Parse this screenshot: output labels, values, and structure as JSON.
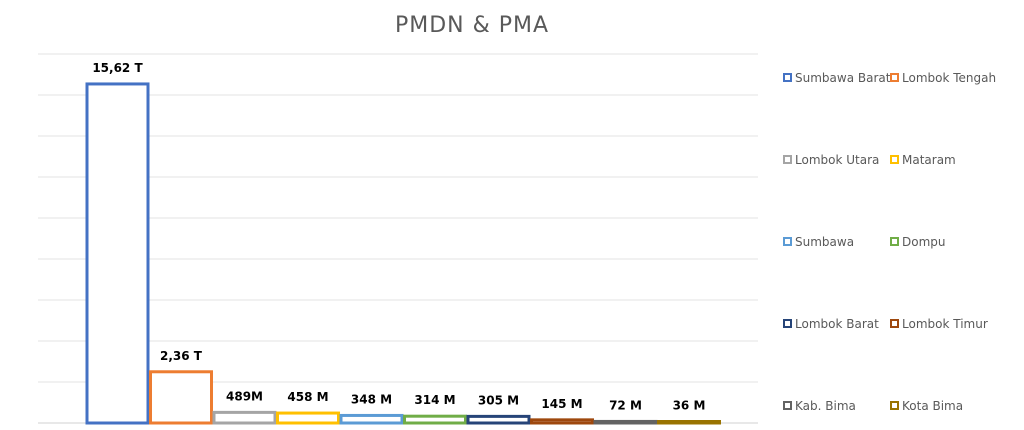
{
  "chart_data": {
    "type": "bar",
    "title": "PMDN & PMA",
    "xlabel": "",
    "ylabel": "",
    "ylim": [
      0,
      17
    ],
    "grid": true,
    "legend_position": "right",
    "bar_style": "outline",
    "series": [
      {
        "name": "Sumbawa Barat",
        "value": 15.62,
        "label": "15,62 T",
        "color": "#4472C4"
      },
      {
        "name": "Lombok Tengah",
        "value": 2.36,
        "label": "2,36 T",
        "color": "#ED7D31"
      },
      {
        "name": "Lombok Utara",
        "value": 0.489,
        "label": "489M",
        "color": "#A5A5A5"
      },
      {
        "name": "Mataram",
        "value": 0.458,
        "label": "458 M",
        "color": "#FFC000"
      },
      {
        "name": "Sumbawa",
        "value": 0.348,
        "label": "348 M",
        "color": "#5B9BD5"
      },
      {
        "name": "Dompu",
        "value": 0.314,
        "label": "314 M",
        "color": "#70AD47"
      },
      {
        "name": "Lombok Barat",
        "value": 0.305,
        "label": "305 M",
        "color": "#264478"
      },
      {
        "name": "Lombok Timur",
        "value": 0.145,
        "label": "145 M",
        "color": "#9E480E"
      },
      {
        "name": "Kab. Bima",
        "value": 0.072,
        "label": "72 M",
        "color": "#636363"
      },
      {
        "name": "Kota Bima",
        "value": 0.036,
        "label": "36 M",
        "color": "#997300"
      }
    ]
  }
}
